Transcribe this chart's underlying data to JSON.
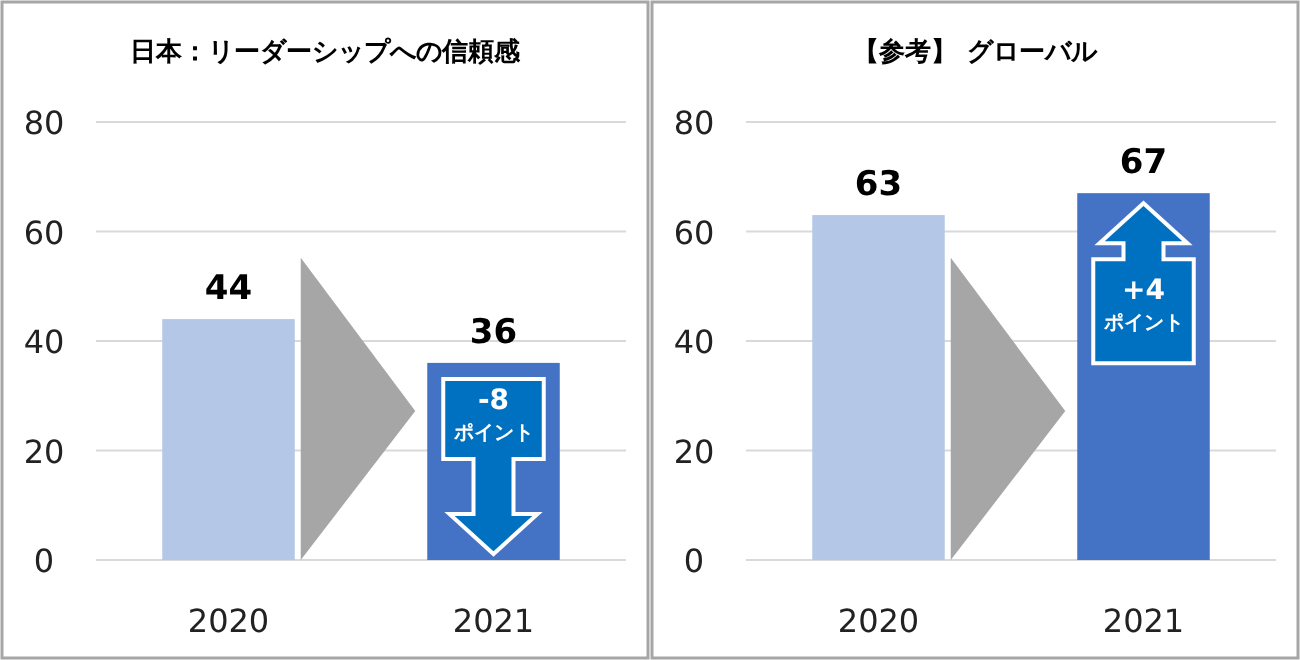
{
  "chart_data": [
    {
      "type": "bar",
      "title": "日本：リーダーシップへの信頼感",
      "categories": [
        "2020",
        "2021"
      ],
      "values": [
        44,
        36
      ],
      "colors": [
        "#b4c7e7",
        "#4472c4"
      ],
      "ylim": [
        0,
        80
      ],
      "yticks": [
        0,
        20,
        40,
        60,
        80
      ],
      "grid": "y",
      "data_labels": true,
      "annotations": [
        "-8 ポイント"
      ]
    },
    {
      "type": "bar",
      "title": "【参考】 グローバル",
      "categories": [
        "2020",
        "2021"
      ],
      "values": [
        63,
        67
      ],
      "colors": [
        "#b4c7e7",
        "#4472c4"
      ],
      "ylim": [
        0,
        80
      ],
      "yticks": [
        0,
        20,
        40,
        60,
        80
      ],
      "grid": "y",
      "data_labels": true,
      "annotations": [
        "+4 ポイント"
      ]
    }
  ]
}
